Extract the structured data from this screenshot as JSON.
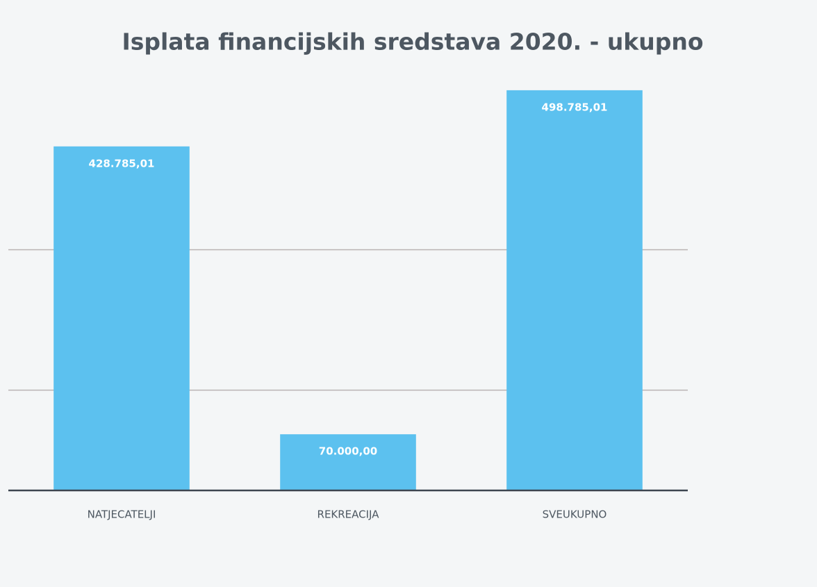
{
  "chart_data": {
    "type": "bar",
    "title": "Isplata financijskih sredstava 2020. - ukupno",
    "categories": [
      "NATJECATELJI",
      "REKREACIJA",
      "SVEUKUPNO"
    ],
    "values": [
      428785.01,
      70000,
      498785.01
    ],
    "value_labels": [
      "428.785,01",
      "70.000,00",
      "498.785,01"
    ],
    "color": "#5cc1ef",
    "ylim": [
      0,
      600000
    ],
    "yticks": [
      0,
      125000,
      300000
    ],
    "grid": true
  }
}
